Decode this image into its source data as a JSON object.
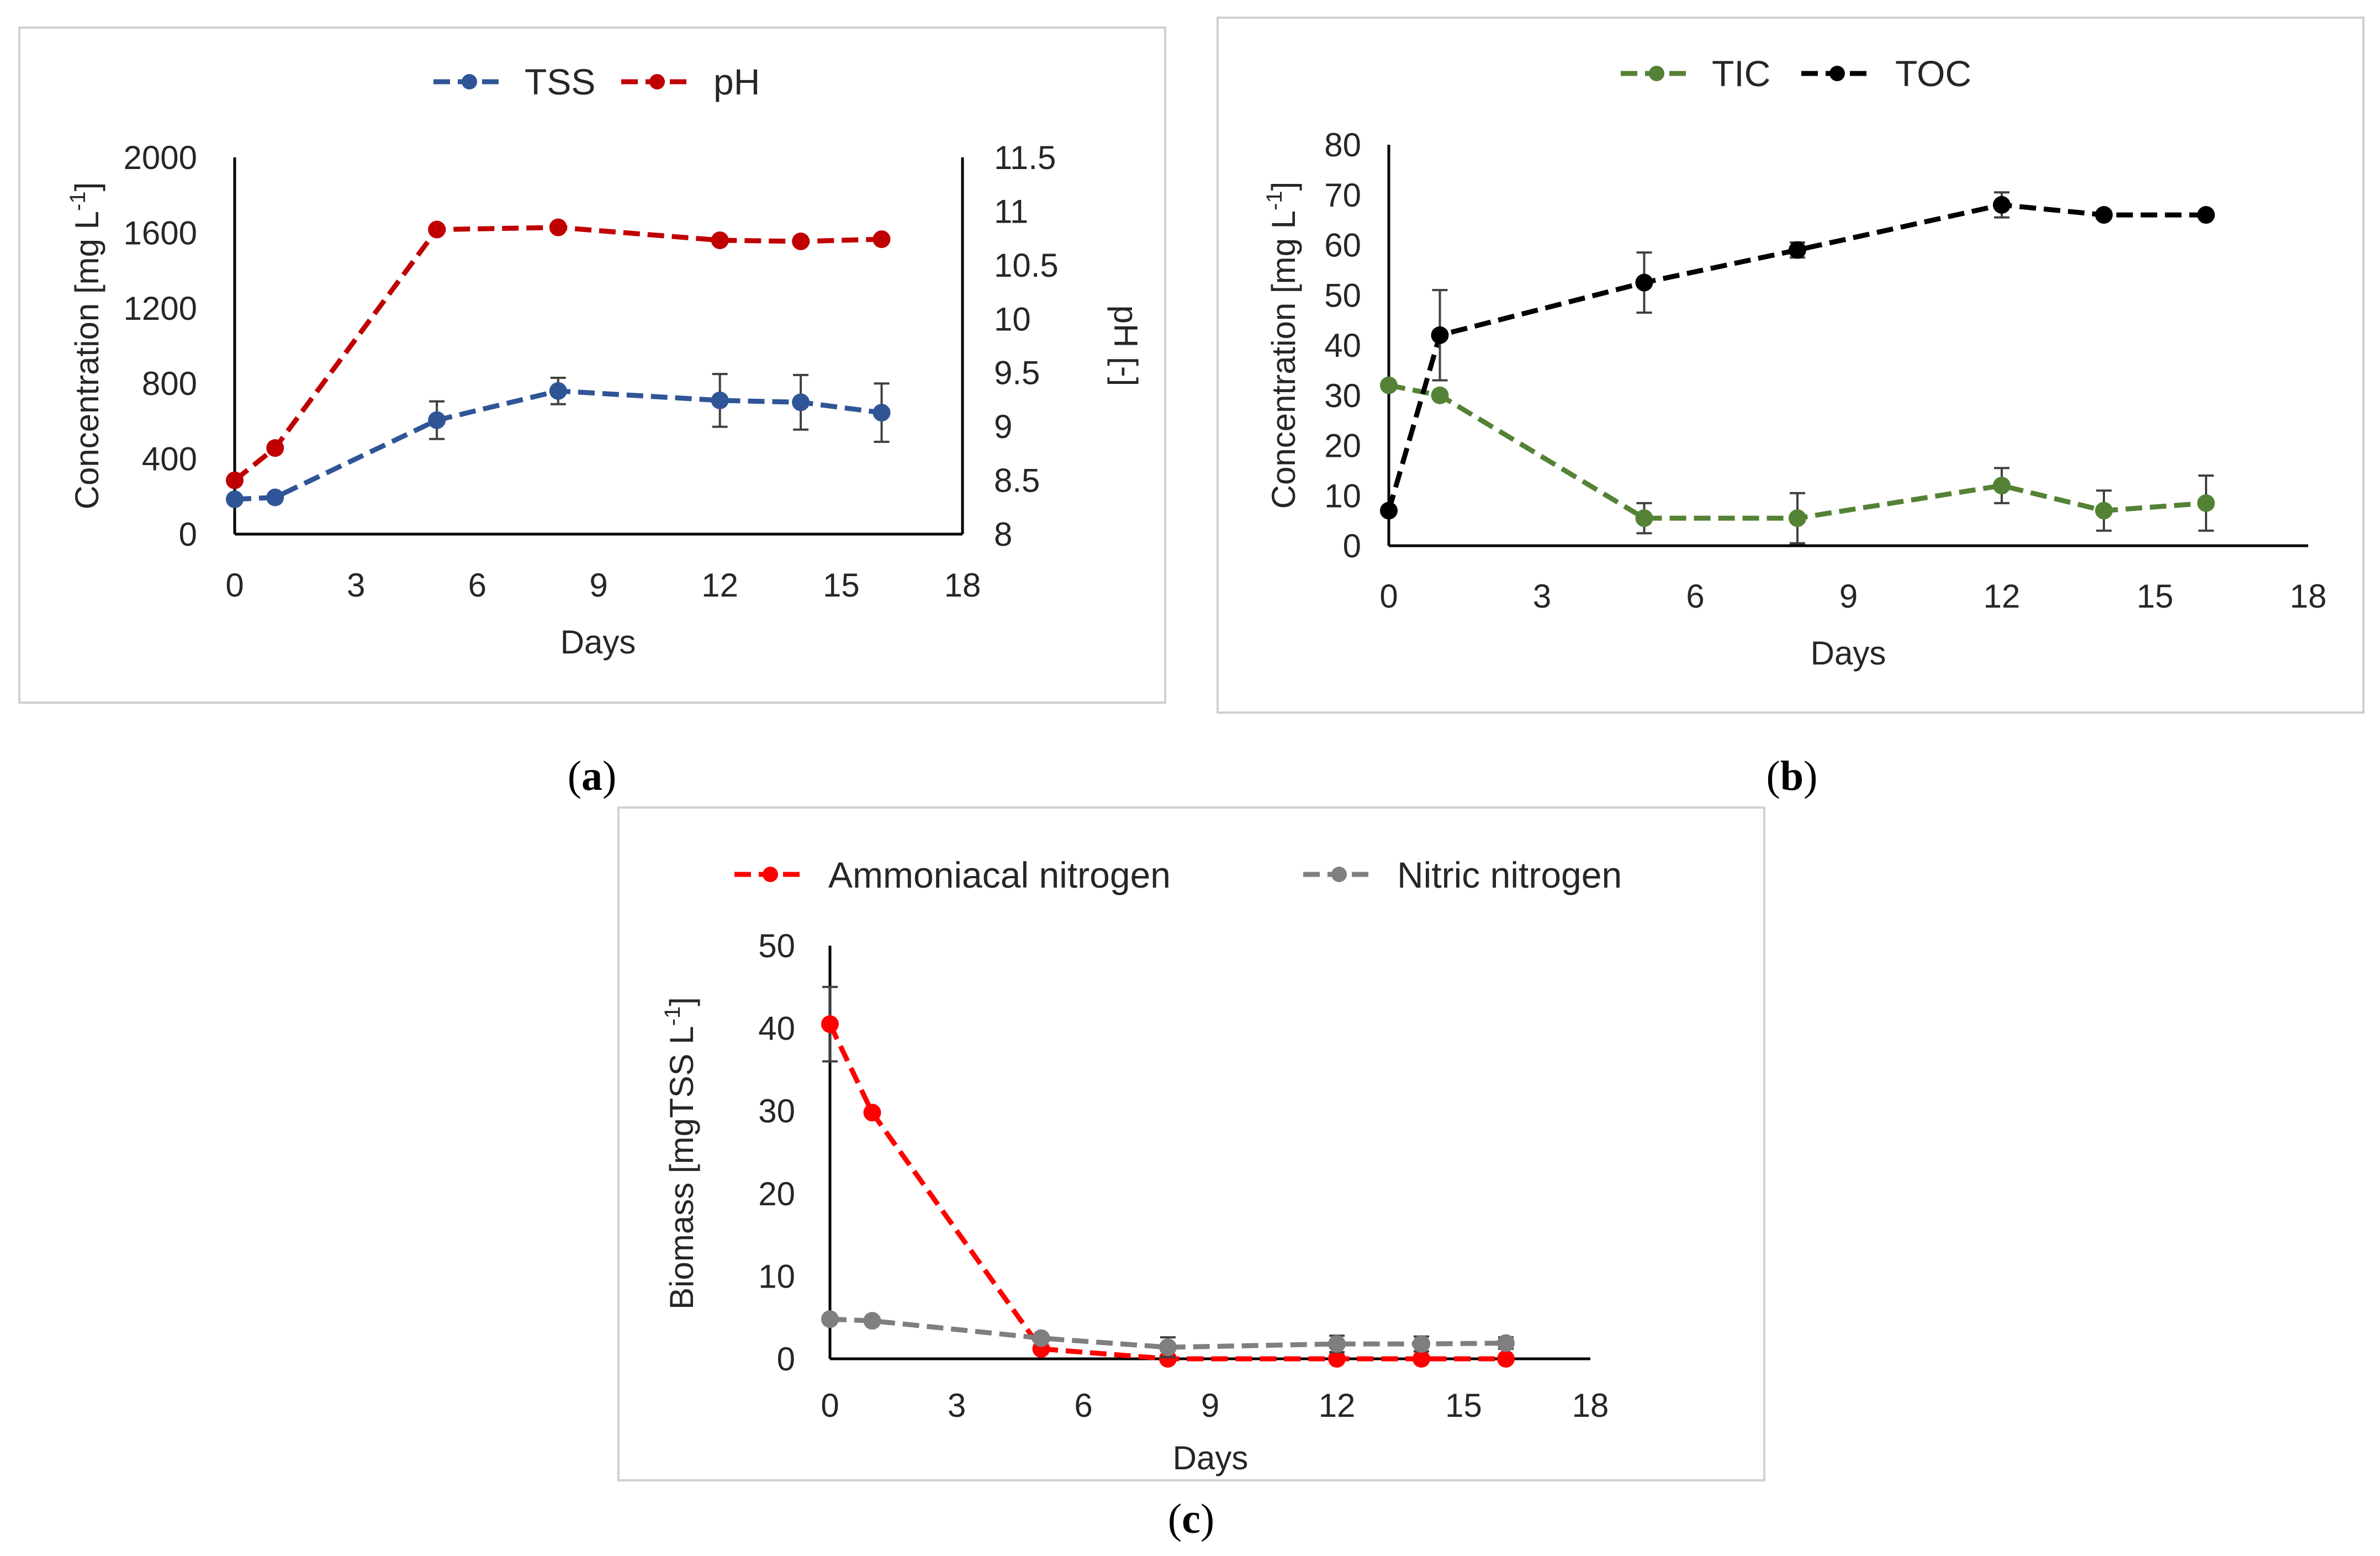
{
  "captions": {
    "a": "a",
    "b": "b",
    "c": "c"
  },
  "chart_data": [
    {
      "id": "a",
      "type": "line",
      "xlabel": "Days",
      "ylabel": "Concentration [mg L",
      "ylabel_sup": "-1",
      "ylabel_close": "]",
      "y2label": "pH [-]",
      "xlim": [
        0,
        18
      ],
      "ylim": [
        0,
        2000
      ],
      "y2lim": [
        8,
        11.5
      ],
      "xticks": [
        "0",
        "3",
        "6",
        "9",
        "12",
        "15",
        "18"
      ],
      "yticks": [
        "0",
        "400",
        "800",
        "1200",
        "1600",
        "2000"
      ],
      "y2ticks": [
        "8",
        "8.5",
        "9",
        "9.5",
        "10",
        "10.5",
        "11",
        "11.5"
      ],
      "series": [
        {
          "name": "TSS",
          "axis": "left",
          "color": "#2F5597",
          "x": [
            0,
            1,
            5,
            8,
            12,
            14,
            16
          ],
          "y": [
            185,
            195,
            605,
            760,
            710,
            700,
            645
          ],
          "err": [
            0,
            0,
            100,
            70,
            140,
            145,
            155
          ]
        },
        {
          "name": "pH",
          "axis": "right",
          "color": "#C00000",
          "x": [
            0,
            1,
            5,
            8,
            12,
            14,
            16
          ],
          "y": [
            8.5,
            8.8,
            10.83,
            10.85,
            10.73,
            10.72,
            10.74
          ],
          "err": [
            0,
            0,
            0,
            0,
            0,
            0,
            0
          ]
        }
      ]
    },
    {
      "id": "b",
      "type": "line",
      "xlabel": "Days",
      "ylabel": "Concentration [mg L",
      "ylabel_sup": "-1",
      "ylabel_close": "]",
      "xlim": [
        0,
        18
      ],
      "ylim": [
        0,
        80
      ],
      "xticks": [
        "0",
        "3",
        "6",
        "9",
        "12",
        "15",
        "18"
      ],
      "yticks": [
        "0",
        "10",
        "20",
        "30",
        "40",
        "50",
        "60",
        "70",
        "80"
      ],
      "series": [
        {
          "name": "TIC",
          "axis": "left",
          "color": "#548235",
          "x": [
            0,
            1,
            5,
            8,
            12,
            14,
            16
          ],
          "y": [
            32,
            30,
            5.5,
            5.5,
            12,
            7,
            8.5
          ],
          "err": [
            0,
            0,
            3,
            5,
            3.5,
            4,
            5.5
          ]
        },
        {
          "name": "TOC",
          "axis": "left",
          "color": "#000000",
          "x": [
            0,
            1,
            5,
            8,
            12,
            14,
            16
          ],
          "y": [
            7,
            42,
            52.5,
            59,
            68,
            66,
            66
          ],
          "err": [
            0,
            9,
            6,
            1.5,
            2.5,
            0,
            0
          ]
        }
      ]
    },
    {
      "id": "c",
      "type": "line",
      "xlabel": "Days",
      "ylabel": "Biomass [mgTSS L",
      "ylabel_sup": "-1",
      "ylabel_close": "]",
      "xlim": [
        0,
        18
      ],
      "ylim": [
        0,
        50
      ],
      "xticks": [
        "0",
        "3",
        "6",
        "9",
        "12",
        "15",
        "18"
      ],
      "yticks": [
        "0",
        "10",
        "20",
        "30",
        "40",
        "50"
      ],
      "series": [
        {
          "name": "Ammoniacal nitrogen",
          "axis": "left",
          "color": "#FF0000",
          "x": [
            0,
            1,
            5,
            8,
            12,
            14,
            16
          ],
          "y": [
            40.5,
            29.8,
            1.2,
            0,
            0,
            0,
            0
          ],
          "err": [
            4.5,
            0,
            0,
            0,
            0,
            0,
            0
          ]
        },
        {
          "name": "Nitric nitrogen",
          "axis": "left",
          "color": "#7F7F7F",
          "x": [
            0,
            1,
            5,
            8,
            12,
            14,
            16
          ],
          "y": [
            4.8,
            4.6,
            2.5,
            1.4,
            1.8,
            1.8,
            1.9
          ],
          "err": [
            0,
            0,
            0,
            1.2,
            1.0,
            0.9,
            0.7
          ]
        }
      ]
    }
  ]
}
